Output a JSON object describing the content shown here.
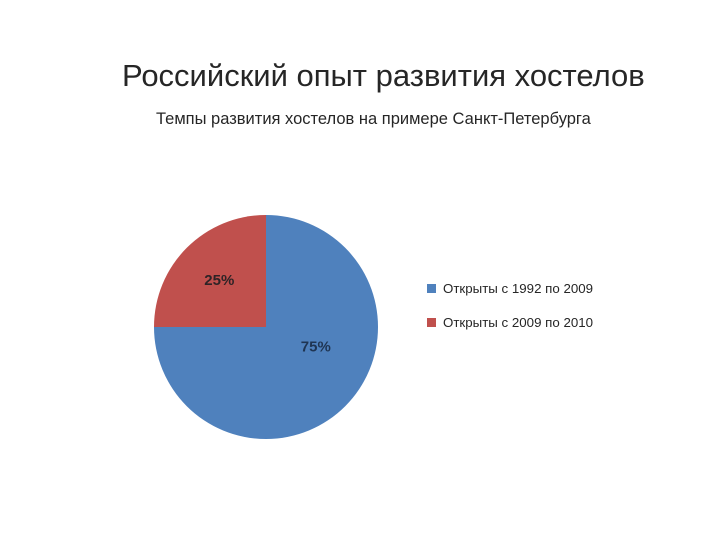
{
  "slide": {
    "title": "Российский опыт развития хостелов",
    "subtitle": "Темпы развития хостелов на примере Санкт-Петербурга"
  },
  "chart_data": {
    "type": "pie",
    "title": "Темпы развития хостелов на примере Санкт-Петербурга",
    "categories": [
      "Открыты с 1992 по 2009",
      "Открыты с 2009 по 2010"
    ],
    "values": [
      75,
      25
    ],
    "unit": "percent",
    "legend_position": "right",
    "grid": false,
    "start_angle_deg": 0,
    "direction": "clockwise",
    "slices": [
      {
        "label": "Открыты с 1992 по 2009",
        "value": 75,
        "pct_label": "75%",
        "color": "#4F81BD",
        "label_color": "#1F3553",
        "label_angle_deg": 112,
        "label_radius_frac": 0.48
      },
      {
        "label": "Открыты с 2009 по 2010",
        "value": 25,
        "pct_label": "25%",
        "color": "#C0504D",
        "label_color": "#2E2326",
        "label_angle_deg": 315,
        "label_radius_frac": 0.59
      }
    ]
  }
}
